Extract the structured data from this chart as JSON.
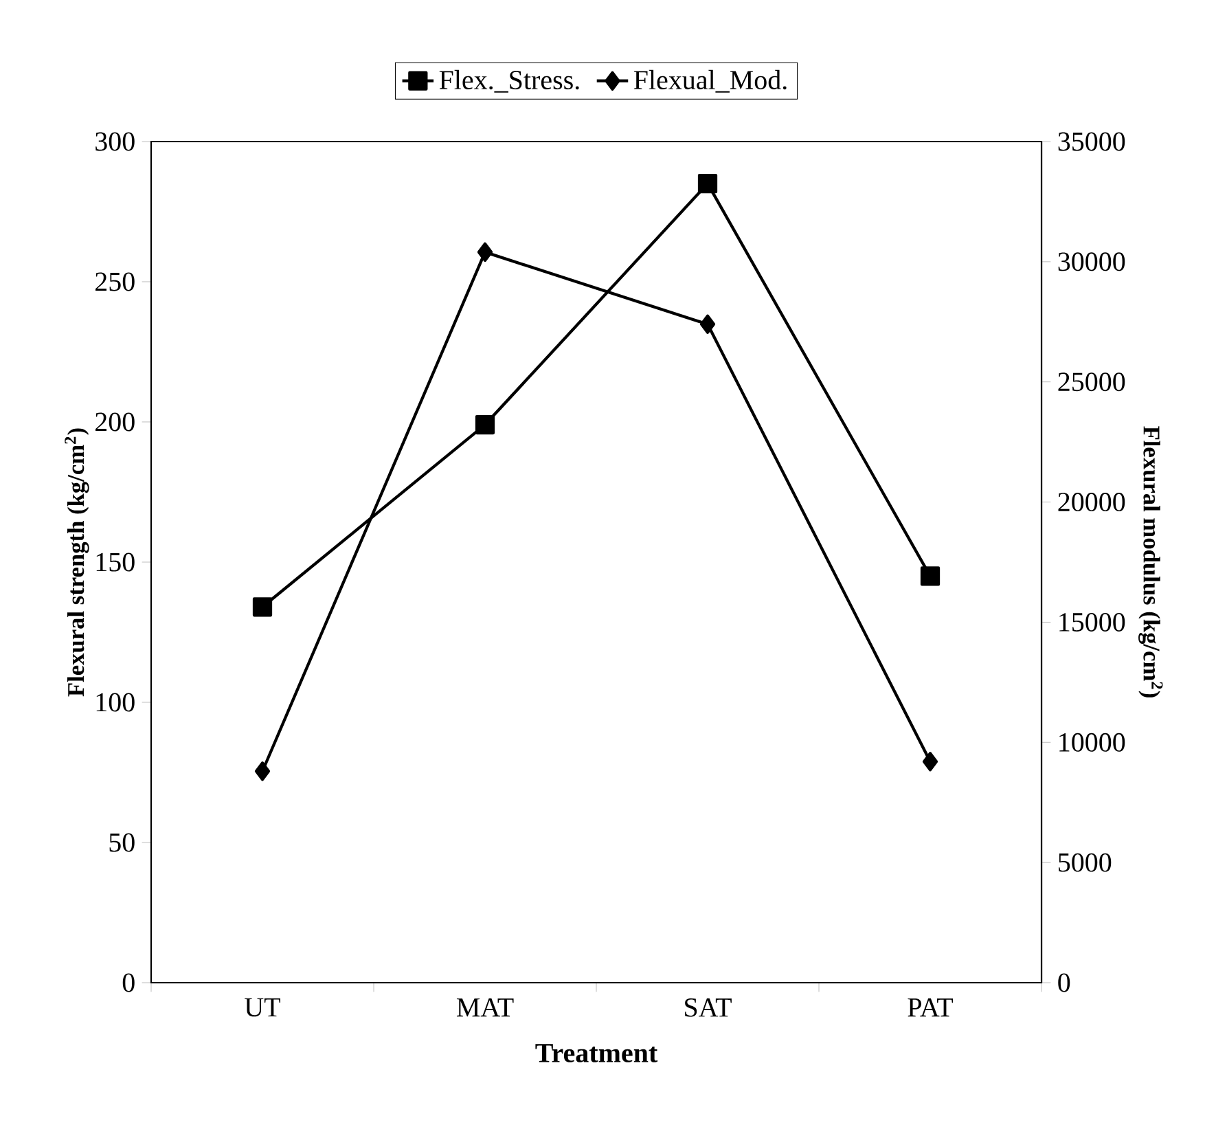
{
  "chart_data": {
    "type": "line",
    "xlabel": "Treatment",
    "ylabel": "Flexural strength (kg/cm$^{2}$)",
    "y2label": "Flexural modulus (kg/cm$^{2}$)",
    "categories": [
      "UT",
      "MAT",
      "SAT",
      "PAT"
    ],
    "series": [
      {
        "name": "Flex._Stress.",
        "color": "#000000",
        "marker": "square",
        "values": [
          134,
          199,
          285,
          145
        ]
      },
      {
        "name": "Flexual_Mod.",
        "color": "#000000",
        "marker": "diamond",
        "axis": "y2",
        "values": [
          8800,
          30400,
          27400,
          9200
        ]
      }
    ],
    "ylim": [
      0,
      300
    ],
    "yticks": [
      0,
      50,
      100,
      150,
      200,
      250,
      300
    ],
    "y2lim": [
      0,
      35000
    ],
    "y2ticks": [
      0,
      5000,
      10000,
      15000,
      20000,
      25000,
      30000,
      35000
    ],
    "legend": "top",
    "line_style": "solid",
    "grid": false
  }
}
